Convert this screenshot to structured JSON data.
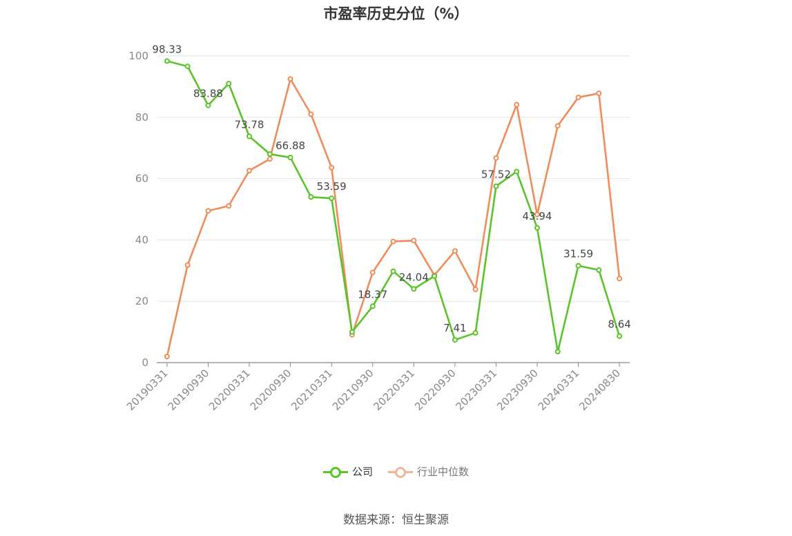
{
  "title": "市盈率历史分位（%）",
  "source": "数据来源：恒生聚源",
  "colors": {
    "company": "#5ac328",
    "industry": "#f08c5a",
    "industry_legend": "#f5b49a",
    "axis": "#888888",
    "grid": "#e6e6e6"
  },
  "legend": [
    {
      "label": "公司",
      "color": "#5ac328"
    },
    {
      "label": "行业中位数",
      "color": "#f5b49a"
    }
  ],
  "chart_data": {
    "type": "line",
    "title": "市盈率历史分位（%）",
    "xlabel": "",
    "ylabel": "",
    "ylim": [
      0,
      100
    ],
    "yticks": [
      0,
      20,
      40,
      60,
      80,
      100
    ],
    "grid": true,
    "legend_position": "bottom",
    "x": [
      "20190331",
      "20190630",
      "20190930",
      "20191231",
      "20200331",
      "20200630",
      "20200930",
      "20201231",
      "20210331",
      "20210630",
      "20210930",
      "20211231",
      "20220331",
      "20220630",
      "20220930",
      "20221231",
      "20230331",
      "20230630",
      "20230930",
      "20231231",
      "20240331",
      "20240630",
      "20240830"
    ],
    "xtick_labels": [
      "20190331",
      "20190930",
      "20200331",
      "20200930",
      "20210331",
      "20210930",
      "20220331",
      "20220930",
      "20230331",
      "20230930",
      "20240331",
      "20240830"
    ],
    "series": [
      {
        "name": "公司",
        "values": [
          98.33,
          96.6,
          83.88,
          91.0,
          73.78,
          68.0,
          66.88,
          54.0,
          53.59,
          10.0,
          18.37,
          29.8,
          24.04,
          28.2,
          7.41,
          9.7,
          57.52,
          62.3,
          43.94,
          3.6,
          31.59,
          30.2,
          8.64
        ],
        "data_labels": {
          "0": "98.33",
          "2": "83.88",
          "4": "73.78",
          "6": "66.88",
          "8": "53.59",
          "10": "18.37",
          "12": "24.04",
          "14": "7.41",
          "16": "57.52",
          "18": "43.94",
          "20": "31.59",
          "22": "8.64"
        }
      },
      {
        "name": "行业中位数",
        "values": [
          2.0,
          31.8,
          49.5,
          51.1,
          62.6,
          66.4,
          92.5,
          81.0,
          63.6,
          9.1,
          29.4,
          39.5,
          39.8,
          28.5,
          36.4,
          23.9,
          66.7,
          84.1,
          48.3,
          77.2,
          86.5,
          87.8,
          27.4
        ]
      }
    ]
  }
}
